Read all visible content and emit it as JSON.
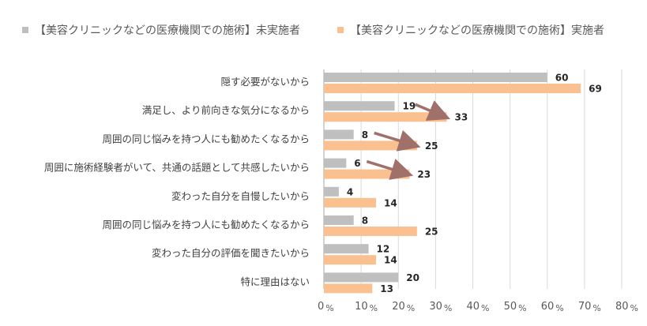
{
  "chart_data": {
    "type": "bar",
    "orientation": "horizontal",
    "categories": [
      "隠す必要がないから",
      "満足し、より前向きな気分になるから",
      "周囲の同じ悩みを持つ人にも勧めたくなるから",
      "周囲に施術経験者がいて、共通の話題として共感したいから",
      "変わった自分を自慢したいから",
      "周囲の同じ悩みを持つ人にも勧めたくなるから",
      "変わった自分の評価を聞きたいから",
      "特に理由はない"
    ],
    "series": [
      {
        "name": "【美容クリニックなどの医療機関での施術】未実施者",
        "color": "#bfbfbf",
        "values": [
          60,
          19,
          8,
          6,
          4,
          8,
          12,
          20
        ]
      },
      {
        "name": "【美容クリニックなどの医療機関での施術】実施者",
        "color": "#fac090",
        "values": [
          69,
          33,
          25,
          23,
          14,
          25,
          14,
          13
        ]
      }
    ],
    "xlim": [
      0,
      80
    ],
    "xticks": [
      0,
      10,
      20,
      30,
      40,
      50,
      60,
      70,
      80
    ],
    "tick_unit": "%",
    "grid": true,
    "legend_position": "top",
    "annotations": [
      {
        "type": "arrow",
        "category_index": 1,
        "color": "#a0706b"
      },
      {
        "type": "arrow",
        "category_index": 2,
        "color": "#a0706b"
      },
      {
        "type": "arrow",
        "category_index": 3,
        "color": "#a0706b"
      }
    ]
  }
}
